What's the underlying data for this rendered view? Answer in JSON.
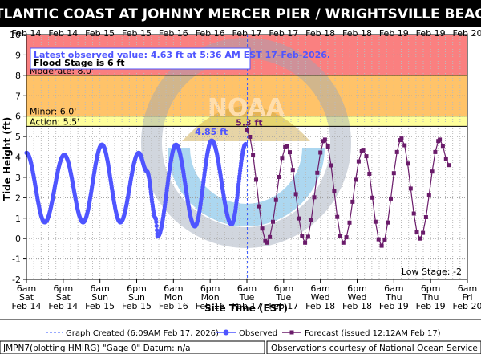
{
  "chart_data": {
    "type": "line",
    "title": "ATLANTIC COAST AT JOHNNY MERCER PIER / WRIGHTSVILLE BEACH",
    "xlabel": "Site Time (EST)",
    "ylabel": "Tide Height (ft)",
    "ylim": [
      -2,
      10
    ],
    "xlim": [
      "2026-02-14 06:00",
      "2026-02-20 06:00"
    ],
    "yticks": [
      "-2",
      "-1",
      "0",
      "1",
      "2",
      "3",
      "4",
      "5",
      "6",
      "7",
      "8",
      "9",
      "10"
    ],
    "grid": true,
    "top_axis_labels": [
      "Feb 14",
      "Feb 14",
      "Feb 15",
      "Feb 15",
      "Feb 16",
      "Feb 16",
      "Feb 17",
      "Feb 17",
      "Feb 18",
      "Feb 18",
      "Feb 19",
      "Feb 19",
      "Feb 20"
    ],
    "bottom_axis_labels": [
      {
        "time": "6am",
        "day": "Sat",
        "date": "Feb 14"
      },
      {
        "time": "6pm",
        "day": "Sat",
        "date": "Feb 14"
      },
      {
        "time": "6am",
        "day": "Sun",
        "date": "Feb 15"
      },
      {
        "time": "6pm",
        "day": "Sun",
        "date": "Feb 15"
      },
      {
        "time": "6am",
        "day": "Mon",
        "date": "Feb 16"
      },
      {
        "time": "6pm",
        "day": "Mon",
        "date": "Feb 16"
      },
      {
        "time": "6am",
        "day": "Tue",
        "date": "Feb 17"
      },
      {
        "time": "6pm",
        "day": "Tue",
        "date": "Feb 17"
      },
      {
        "time": "6am",
        "day": "Wed",
        "date": "Feb 18"
      },
      {
        "time": "6pm",
        "day": "Wed",
        "date": "Feb 18"
      },
      {
        "time": "6am",
        "day": "Thu",
        "date": "Feb 19"
      },
      {
        "time": "6pm",
        "day": "Thu",
        "date": "Feb 19"
      },
      {
        "time": "6am",
        "day": "Fri",
        "date": "Feb 20"
      }
    ],
    "flood_categories": [
      {
        "label": "Moderate: 8.0'",
        "from": 8.0,
        "to": 10,
        "color": "#fa8080"
      },
      {
        "label": "Minor: 6.0'",
        "from": 6.0,
        "to": 8.0,
        "color": "#ffc369"
      },
      {
        "label": "Action: 5.5'",
        "from": 5.5,
        "to": 6.0,
        "color": "#ffff9b"
      }
    ],
    "low_stage_label": "Low Stage: -2'",
    "latest_observed_text": "Latest observed value: 4.63 ft at 5:36 AM EST 17-Feb-2026.",
    "flood_stage_text": "Flood Stage is 6 ft",
    "graph_created_time": "2026-02-17 06:09",
    "peak_labels": [
      {
        "text": "4.85 ft",
        "time": "2026-02-16 18:24",
        "value": 4.85,
        "series": "observed"
      },
      {
        "text": "5.3 ft",
        "time": "2026-02-17 06:45",
        "value": 5.3,
        "series": "forecast"
      }
    ],
    "series": [
      {
        "name": "Observed",
        "color": "#4f55ff",
        "start": "2026-02-14 06:00",
        "end": "2026-02-17 05:36",
        "extrema": [
          [
            "2026-02-14 06:00",
            4.2
          ],
          [
            "2026-02-14 12:00",
            0.8
          ],
          [
            "2026-02-14 18:20",
            4.1
          ],
          [
            "2026-02-15 00:30",
            0.8
          ],
          [
            "2026-02-15 06:40",
            4.6
          ],
          [
            "2026-02-15 12:40",
            0.8
          ],
          [
            "2026-02-15 18:40",
            4.2
          ],
          [
            "2026-02-15 21:20",
            3.3
          ],
          [
            "2026-02-16 00:10",
            1.0
          ],
          [
            "2026-02-16 00:50",
            0.1
          ],
          [
            "2026-02-16 06:50",
            4.6
          ],
          [
            "2026-02-16 13:00",
            0.6
          ],
          [
            "2026-02-16 18:30",
            4.8
          ],
          [
            "2026-02-17 01:00",
            0.7
          ],
          [
            "2026-02-17 05:36",
            4.63
          ]
        ]
      },
      {
        "name": "Forecast (issued 12:12AM Feb 17)",
        "color": "#6a1b6a",
        "start": "2026-02-17 06:00",
        "end": "2026-02-20 00:00",
        "extrema": [
          [
            "2026-02-17 06:00",
            5.3
          ],
          [
            "2026-02-17 12:30",
            -0.2
          ],
          [
            "2026-02-17 19:00",
            4.55
          ],
          [
            "2026-02-18 01:00",
            -0.2
          ],
          [
            "2026-02-18 07:30",
            4.85
          ],
          [
            "2026-02-18 13:30",
            -0.2
          ],
          [
            "2026-02-18 20:00",
            4.35
          ],
          [
            "2026-02-19 02:00",
            -0.35
          ],
          [
            "2026-02-19 08:30",
            4.9
          ],
          [
            "2026-02-19 14:30",
            0.0
          ],
          [
            "2026-02-19 21:00",
            4.85
          ],
          [
            "2026-02-20 00:00",
            3.6
          ]
        ]
      }
    ],
    "legend": {
      "graph_created": "Graph Created (6:09AM Feb 17, 2026)",
      "observed": "Observed",
      "forecast": "Forecast (issued 12:12AM Feb 17)"
    }
  },
  "footer": {
    "left": "JMPN7(plotting HMIRG) \"Gage 0\" Datum: n/a",
    "right": "Observations courtesy of National Ocean Service"
  },
  "watermark": {
    "text": "NOAA",
    "color": "#4aa8e0"
  },
  "colors": {
    "title_bg": "#000000",
    "plot_bg": "#ffffff",
    "grid": "#bbbbbb",
    "created_line": "#3355ff"
  }
}
